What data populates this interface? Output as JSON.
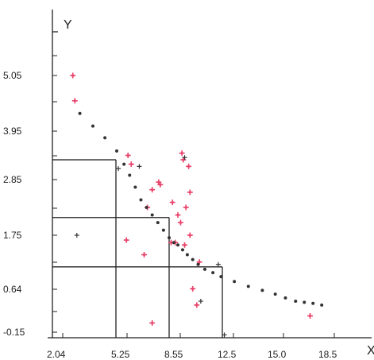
{
  "chart_data": {
    "type": "scatter",
    "title": "",
    "xlabel": "X",
    "ylabel": "Y",
    "xlim": [
      2.04,
      20.4
    ],
    "ylim": [
      -0.15,
      5.7
    ],
    "x_tick_labels": [
      "2.04",
      "5.25",
      "8.55",
      "12.5",
      "15.0",
      "18.5"
    ],
    "y_tick_labels": [
      "-0.15",
      "0.64",
      "1.75",
      "2.85",
      "3.95",
      "5.05"
    ],
    "grid": false,
    "legend": "none",
    "series": [
      {
        "color": "#e8456c",
        "marker": "star",
        "points": [
          [
            3.1,
            5.05
          ],
          [
            3.2,
            4.55
          ],
          [
            6.0,
            3.4
          ],
          [
            6.2,
            3.2
          ],
          [
            5.9,
            1.65
          ],
          [
            7.2,
            2.3
          ],
          [
            7.0,
            1.35
          ],
          [
            7.5,
            0.02
          ],
          [
            8.0,
            2.75
          ],
          [
            8.7,
            1.6
          ],
          [
            9.0,
            1.6
          ],
          [
            9.2,
            2.15
          ],
          [
            9.4,
            2.0
          ],
          [
            9.5,
            3.45
          ],
          [
            9.6,
            3.3
          ],
          [
            9.8,
            2.3
          ],
          [
            10.0,
            3.15
          ],
          [
            10.1,
            2.6
          ],
          [
            10.1,
            1.75
          ],
          [
            10.3,
            0.65
          ],
          [
            10.6,
            0.35
          ],
          [
            10.8,
            1.2
          ],
          [
            17.6,
            0.15
          ],
          [
            7.9,
            2.8
          ],
          [
            8.8,
            2.4
          ],
          [
            9.7,
            1.55
          ],
          [
            7.5,
            2.65
          ]
        ]
      },
      {
        "color": "#333333",
        "marker": "dot",
        "points": [
          [
            3.45,
            4.3
          ],
          [
            4.1,
            4.05
          ],
          [
            4.7,
            3.8
          ],
          [
            5.3,
            3.5
          ],
          [
            5.75,
            3.2
          ],
          [
            6.1,
            2.95
          ],
          [
            6.45,
            2.7
          ],
          [
            6.8,
            2.45
          ],
          [
            7.15,
            2.3
          ],
          [
            7.5,
            2.15
          ],
          [
            7.85,
            2.0
          ],
          [
            8.2,
            1.85
          ],
          [
            8.55,
            1.7
          ],
          [
            8.9,
            1.6
          ],
          [
            9.2,
            1.55
          ],
          [
            9.55,
            1.45
          ],
          [
            9.9,
            1.35
          ],
          [
            10.3,
            1.25
          ],
          [
            10.7,
            1.15
          ],
          [
            11.2,
            1.05
          ],
          [
            11.8,
            0.98
          ],
          [
            12.4,
            0.9
          ],
          [
            13.1,
            0.8
          ],
          [
            13.8,
            0.7
          ],
          [
            14.5,
            0.62
          ],
          [
            15.2,
            0.55
          ],
          [
            15.9,
            0.48
          ],
          [
            16.6,
            0.42
          ],
          [
            17.2,
            0.4
          ],
          [
            17.8,
            0.38
          ],
          [
            18.4,
            0.35
          ]
        ]
      },
      {
        "color": "#333333",
        "marker": "plus",
        "points": [
          [
            3.3,
            1.75
          ],
          [
            5.4,
            3.1
          ],
          [
            6.7,
            3.15
          ],
          [
            9.7,
            3.35
          ],
          [
            10.9,
            0.42
          ],
          [
            12.2,
            1.15
          ],
          [
            12.6,
            -0.2
          ]
        ]
      }
    ],
    "reference_lines": [
      {
        "x": 5.25,
        "y": 3.3
      },
      {
        "x": 8.55,
        "y": 2.1
      },
      {
        "x": 12.5,
        "y": 1.1
      }
    ]
  }
}
